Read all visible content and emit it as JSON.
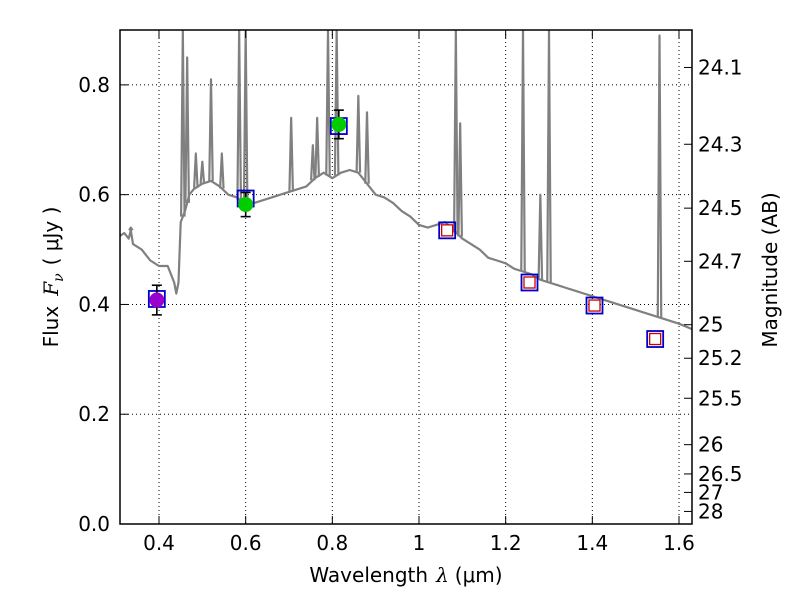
{
  "chart_data": {
    "type": "line",
    "title": "",
    "xlabel_prefix": "Wavelength",
    "xlabel_symbol": "λ",
    "xlabel_unit": "(μm)",
    "ylabel_prefix": "Flux",
    "ylabel_symbol": "F",
    "ylabel_subscript": "ν",
    "ylabel_unit": "( μJy )",
    "y2label": "Magnitude (AB)",
    "xlim": [
      0.31,
      1.63
    ],
    "ylim": [
      0.0,
      0.9
    ],
    "grid": true,
    "x_ticks": [
      0.4,
      0.6,
      0.8,
      1.0,
      1.2,
      1.4,
      1.6
    ],
    "x_tick_labels": [
      "0.4",
      "0.6",
      "0.8",
      "1",
      "1.2",
      "1.4",
      "1.6"
    ],
    "y_ticks": [
      0.0,
      0.2,
      0.4,
      0.6,
      0.8
    ],
    "y_tick_labels": [
      "0.0",
      "0.2",
      "0.4",
      "0.6",
      "0.8"
    ],
    "mag_ticks": [
      24.1,
      24.3,
      24.5,
      24.7,
      25,
      25.2,
      25.5,
      26,
      26.5,
      27,
      28
    ],
    "mag_tick_labels": [
      "24.1",
      "24.3",
      "24.5",
      "24.7",
      "25",
      "25.2",
      "25.5",
      "26",
      "26.5",
      "27",
      "28"
    ],
    "colors": {
      "spectrum": "#808080",
      "model_box": "#0000cc",
      "model_inner": "#cc0000",
      "obs_blue": "#9900cc",
      "obs_green": "#00cc00",
      "grid": "#000000"
    },
    "series": [
      {
        "name": "template spectrum",
        "style": "line",
        "x": [
          0.31,
          0.32,
          0.33,
          0.335,
          0.34,
          0.36,
          0.38,
          0.4,
          0.42,
          0.435,
          0.44,
          0.445,
          0.45,
          0.455,
          0.46,
          0.47,
          0.48,
          0.5,
          0.52,
          0.54,
          0.56,
          0.58,
          0.6,
          0.62,
          0.64,
          0.66,
          0.68,
          0.7,
          0.72,
          0.74,
          0.76,
          0.78,
          0.8,
          0.82,
          0.84,
          0.86,
          0.88,
          0.9,
          0.92,
          0.94,
          0.96,
          0.98,
          1.0,
          1.02,
          1.04,
          1.06,
          1.08,
          1.1,
          1.12,
          1.14,
          1.16,
          1.18,
          1.2,
          1.22,
          1.24,
          1.26,
          1.28,
          1.3,
          1.32,
          1.34,
          1.36,
          1.38,
          1.4,
          1.42,
          1.44,
          1.46,
          1.48,
          1.5,
          1.52,
          1.54,
          1.56,
          1.58,
          1.6,
          1.63
        ],
        "y": [
          0.525,
          0.53,
          0.52,
          0.535,
          0.51,
          0.5,
          0.48,
          0.47,
          0.47,
          0.44,
          0.42,
          0.44,
          0.55,
          0.56,
          0.57,
          0.6,
          0.61,
          0.62,
          0.625,
          0.615,
          0.6,
          0.595,
          0.58,
          0.585,
          0.59,
          0.595,
          0.6,
          0.605,
          0.61,
          0.615,
          0.63,
          0.64,
          0.63,
          0.64,
          0.645,
          0.64,
          0.62,
          0.6,
          0.595,
          0.585,
          0.57,
          0.56,
          0.545,
          0.54,
          0.545,
          0.55,
          0.535,
          0.52,
          0.51,
          0.5,
          0.485,
          0.48,
          0.475,
          0.465,
          0.46,
          0.455,
          0.445,
          0.44,
          0.435,
          0.43,
          0.425,
          0.42,
          0.415,
          0.41,
          0.405,
          0.4,
          0.395,
          0.39,
          0.385,
          0.38,
          0.375,
          0.37,
          0.365,
          0.355
        ]
      },
      {
        "name": "emission lines",
        "style": "spikes",
        "lines": [
          {
            "x": 0.335,
            "peak": 0.54
          },
          {
            "x": 0.455,
            "peak": 0.9
          },
          {
            "x": 0.465,
            "peak": 0.85
          },
          {
            "x": 0.485,
            "peak": 0.675
          },
          {
            "x": 0.5,
            "peak": 0.66
          },
          {
            "x": 0.52,
            "peak": 0.81
          },
          {
            "x": 0.545,
            "peak": 0.675
          },
          {
            "x": 0.585,
            "peak": 0.9
          },
          {
            "x": 0.6,
            "peak": 0.9
          },
          {
            "x": 0.705,
            "peak": 0.74
          },
          {
            "x": 0.755,
            "peak": 0.69
          },
          {
            "x": 0.765,
            "peak": 0.74
          },
          {
            "x": 0.79,
            "peak": 0.9
          },
          {
            "x": 0.81,
            "peak": 0.9
          },
          {
            "x": 0.86,
            "peak": 0.78
          },
          {
            "x": 0.88,
            "peak": 0.75
          },
          {
            "x": 1.085,
            "peak": 0.9
          },
          {
            "x": 1.095,
            "peak": 0.73
          },
          {
            "x": 1.24,
            "peak": 0.9
          },
          {
            "x": 1.28,
            "peak": 0.6
          },
          {
            "x": 1.3,
            "peak": 0.9
          },
          {
            "x": 1.555,
            "peak": 0.89
          }
        ]
      },
      {
        "name": "model photometry",
        "style": "open-square",
        "x": [
          0.395,
          0.6,
          0.815,
          1.065,
          1.255,
          1.405,
          1.545
        ],
        "y": [
          0.41,
          0.593,
          0.725,
          0.535,
          0.44,
          0.398,
          0.337
        ]
      },
      {
        "name": "model photometry (red inner)",
        "style": "red-square",
        "x": [
          1.065,
          1.255,
          1.405,
          1.545
        ],
        "y": [
          0.535,
          0.44,
          0.398,
          0.337
        ]
      },
      {
        "name": "observed photometry",
        "style": "filled-circle-errorbar",
        "points": [
          {
            "x": 0.395,
            "y": 0.408,
            "err": 0.027,
            "color": "#9900cc"
          },
          {
            "x": 0.6,
            "y": 0.582,
            "err": 0.022,
            "color": "#00cc00"
          },
          {
            "x": 0.815,
            "y": 0.728,
            "err": 0.026,
            "color": "#00cc00"
          }
        ]
      }
    ]
  }
}
